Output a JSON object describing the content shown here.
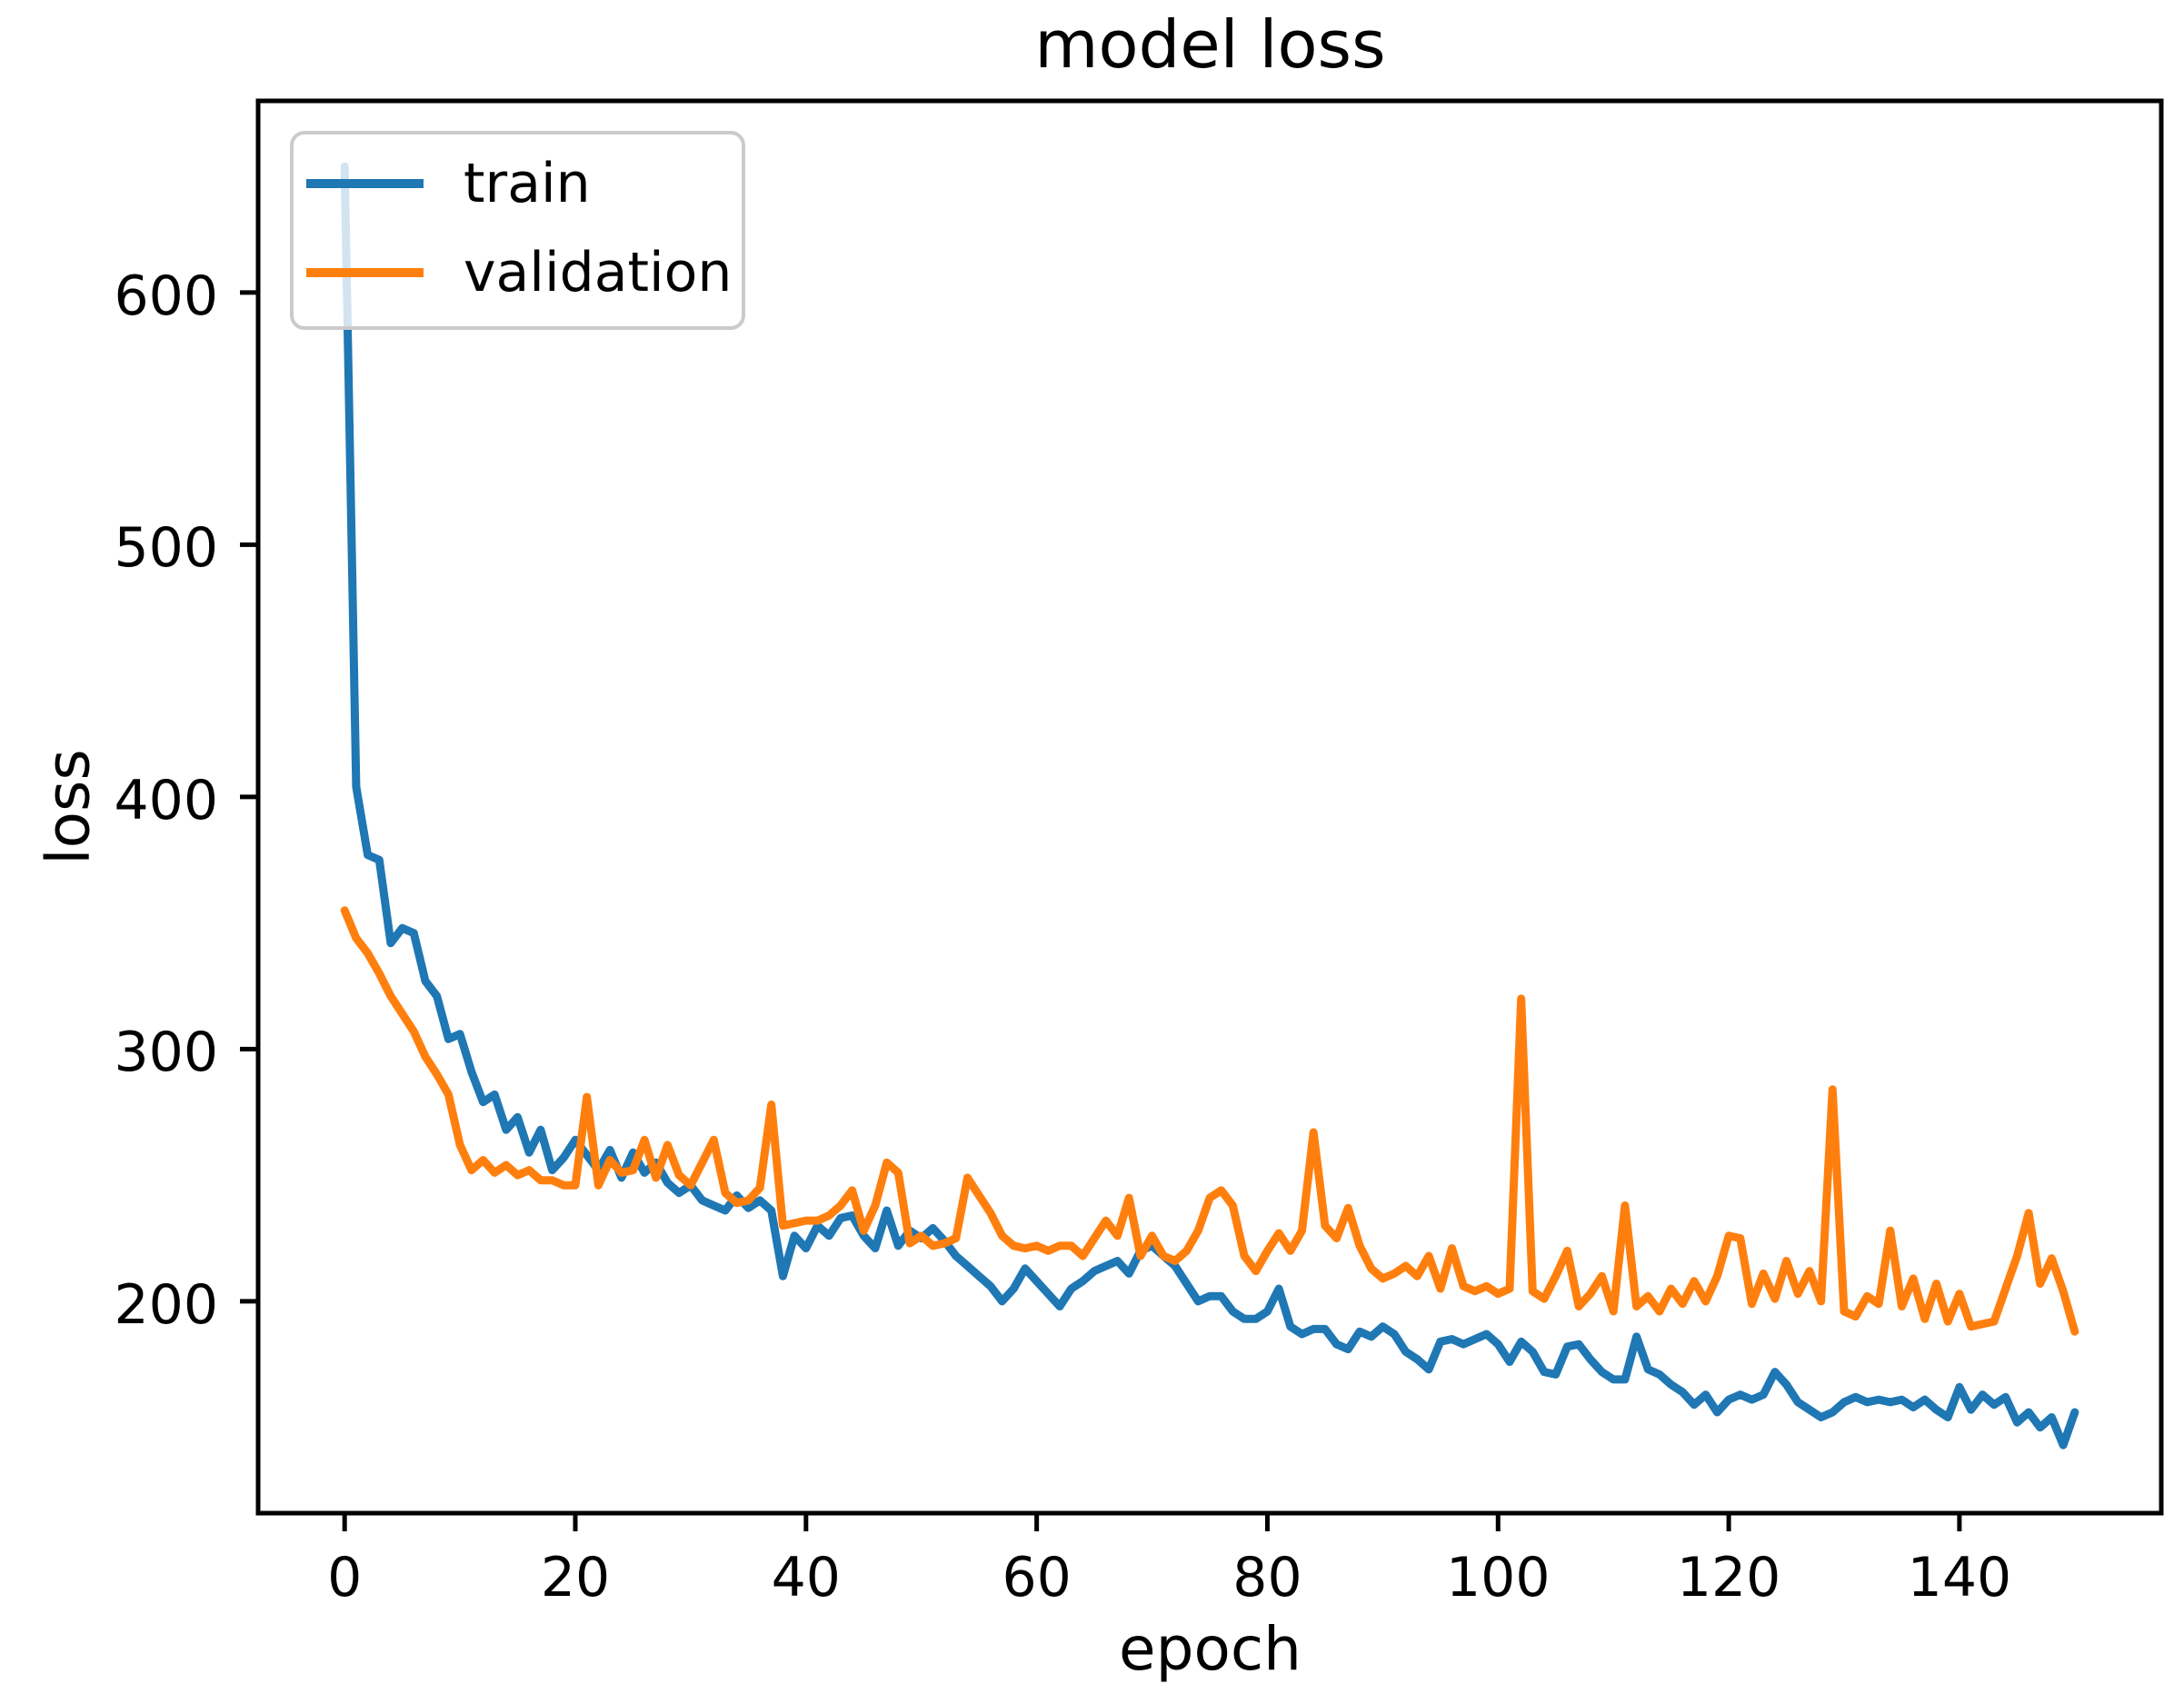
{
  "figure": {
    "title": "model loss",
    "background": "#ffffff"
  },
  "chart_data": {
    "type": "line",
    "title": "model loss",
    "xlabel": "epoch",
    "ylabel": "loss",
    "grid": false,
    "legend": {
      "position": "upper left",
      "entries": [
        "train",
        "validation"
      ]
    },
    "xlim": [
      -7.5,
      157.5
    ],
    "ylim": [
      116,
      676
    ],
    "xticks": [
      0,
      20,
      40,
      60,
      80,
      100,
      120,
      140
    ],
    "yticks": [
      200,
      300,
      400,
      500,
      600
    ],
    "x_start": 0,
    "x_step": 1,
    "axis_color": "#000000",
    "series": [
      {
        "name": "train",
        "color": "#1f77b4",
        "values": [
          650,
          404,
          377,
          375,
          342,
          348,
          346,
          327,
          321,
          304,
          306,
          291,
          279,
          282,
          268,
          273,
          259,
          268,
          252,
          257,
          264,
          258,
          252,
          260,
          249,
          259,
          251,
          255,
          247,
          243,
          246,
          240,
          238,
          236,
          242,
          237,
          240,
          236,
          210,
          226,
          221,
          230,
          226,
          233,
          234,
          226,
          221,
          236,
          222,
          228,
          225,
          229,
          224,
          218,
          214,
          210,
          206,
          200,
          205,
          213,
          208,
          203,
          198,
          205,
          208,
          212,
          214,
          216,
          211,
          220,
          222,
          218,
          214,
          207,
          200,
          202,
          202,
          196,
          193,
          193,
          196,
          205,
          190,
          187,
          189,
          189,
          183,
          181,
          188,
          186,
          190,
          187,
          180,
          177,
          173,
          184,
          185,
          183,
          185,
          187,
          183,
          176,
          184,
          180,
          172,
          171,
          182,
          183,
          177,
          172,
          169,
          169,
          186,
          173,
          171,
          167,
          164,
          159,
          163,
          156,
          161,
          163,
          161,
          163,
          172,
          167,
          160,
          157,
          154,
          156,
          160,
          162,
          160,
          161,
          160,
          161,
          158,
          161,
          157,
          154,
          166,
          157,
          163,
          159,
          162,
          152,
          156,
          150,
          154,
          143,
          156
        ]
      },
      {
        "name": "validation",
        "color": "#ff7f0e",
        "values": [
          355,
          344,
          338,
          330,
          321,
          314,
          307,
          297,
          290,
          282,
          262,
          252,
          256,
          251,
          254,
          250,
          252,
          248,
          248,
          246,
          246,
          281,
          246,
          256,
          251,
          252,
          264,
          249,
          262,
          250,
          246,
          255,
          264,
          243,
          239,
          240,
          245,
          278,
          230,
          231,
          232,
          232,
          234,
          238,
          244,
          228,
          238,
          255,
          251,
          223,
          226,
          222,
          223,
          225,
          249,
          242,
          235,
          226,
          222,
          221,
          222,
          220,
          222,
          222,
          218,
          225,
          232,
          226,
          241,
          218,
          226,
          218,
          216,
          220,
          228,
          241,
          244,
          238,
          218,
          212,
          220,
          227,
          220,
          228,
          267,
          230,
          225,
          237,
          222,
          213,
          209,
          211,
          214,
          210,
          218,
          205,
          221,
          206,
          204,
          206,
          203,
          205,
          320,
          204,
          201,
          210,
          220,
          198,
          203,
          210,
          196,
          238,
          198,
          202,
          196,
          205,
          199,
          208,
          200,
          210,
          226,
          225,
          199,
          211,
          201,
          216,
          203,
          212,
          200,
          284,
          196,
          194,
          202,
          199,
          228,
          198,
          209,
          193,
          207,
          192,
          203,
          190,
          191,
          192,
          205,
          218,
          235,
          207,
          217,
          204,
          188
        ]
      }
    ]
  }
}
